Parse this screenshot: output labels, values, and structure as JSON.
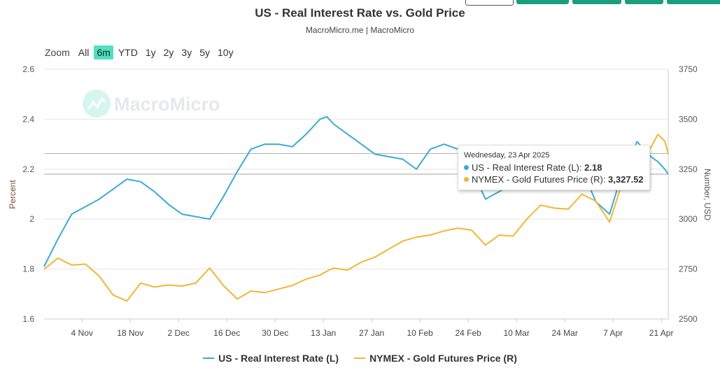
{
  "chart_data": {
    "type": "line",
    "title": "US - Real Interest Rate vs. Gold Price",
    "subtitle": "MacroMicro.me | MacroMicro",
    "watermark": "MacroMicro",
    "range_selector": {
      "label": "Zoom",
      "options": [
        "All",
        "6m",
        "YTD",
        "1y",
        "2y",
        "3y",
        "5y",
        "10y"
      ],
      "selected": "6m"
    },
    "ylabel_left": "Percent",
    "ylabel_right": "Number, USD",
    "ylim_left": [
      1.6,
      2.6
    ],
    "ylim_right": [
      2500,
      3750
    ],
    "yticks_left": [
      "1.6",
      "1.8",
      "2",
      "2.2",
      "2.4",
      "2.6"
    ],
    "yticks_right": [
      "2500",
      "2750",
      "3000",
      "3250",
      "3500",
      "3750"
    ],
    "xticks": [
      {
        "date": "2024-11-04",
        "label": "4 Nov"
      },
      {
        "date": "2024-11-18",
        "label": "18 Nov"
      },
      {
        "date": "2024-12-02",
        "label": "2 Dec"
      },
      {
        "date": "2024-12-16",
        "label": "16 Dec"
      },
      {
        "date": "2024-12-30",
        "label": "30 Dec"
      },
      {
        "date": "2025-01-13",
        "label": "13 Jan"
      },
      {
        "date": "2025-01-27",
        "label": "27 Jan"
      },
      {
        "date": "2025-02-10",
        "label": "10 Feb"
      },
      {
        "date": "2025-02-24",
        "label": "24 Feb"
      },
      {
        "date": "2025-03-10",
        "label": "10 Mar"
      },
      {
        "date": "2025-03-24",
        "label": "24 Mar"
      },
      {
        "date": "2025-04-07",
        "label": "7 Apr"
      },
      {
        "date": "2025-04-21",
        "label": "21 Apr"
      }
    ],
    "xlim": [
      "2024-10-24",
      "2025-04-23"
    ],
    "grid": true,
    "legend_position": "bottom",
    "x": [
      "2024-10-24",
      "2024-10-28",
      "2024-11-01",
      "2024-11-05",
      "2024-11-09",
      "2024-11-13",
      "2024-11-17",
      "2024-11-21",
      "2024-11-25",
      "2024-11-29",
      "2024-12-03",
      "2024-12-07",
      "2024-12-11",
      "2024-12-15",
      "2024-12-19",
      "2024-12-23",
      "2024-12-27",
      "2024-12-31",
      "2025-01-04",
      "2025-01-08",
      "2025-01-12",
      "2025-01-14",
      "2025-01-16",
      "2025-01-20",
      "2025-01-24",
      "2025-01-28",
      "2025-02-01",
      "2025-02-05",
      "2025-02-09",
      "2025-02-13",
      "2025-02-17",
      "2025-02-21",
      "2025-02-25",
      "2025-03-01",
      "2025-03-05",
      "2025-03-09",
      "2025-03-13",
      "2025-03-17",
      "2025-03-21",
      "2025-03-25",
      "2025-03-29",
      "2025-04-02",
      "2025-04-06",
      "2025-04-10",
      "2025-04-14",
      "2025-04-18",
      "2025-04-20",
      "2025-04-22",
      "2025-04-23"
    ],
    "series": [
      {
        "name": "US - Real Interest Rate (L)",
        "axis": "left",
        "color": "#3aabd6",
        "values": [
          1.81,
          1.92,
          2.02,
          2.05,
          2.08,
          2.12,
          2.16,
          2.15,
          2.11,
          2.06,
          2.02,
          2.01,
          2.0,
          2.09,
          2.19,
          2.28,
          2.3,
          2.3,
          2.29,
          2.34,
          2.4,
          2.41,
          2.38,
          2.34,
          2.3,
          2.26,
          2.25,
          2.24,
          2.2,
          2.28,
          2.3,
          2.28,
          2.2,
          2.08,
          2.11,
          2.14,
          2.16,
          2.18,
          2.2,
          2.22,
          2.2,
          2.07,
          2.02,
          2.2,
          2.31,
          2.25,
          2.23,
          2.2,
          2.18
        ]
      },
      {
        "name": "NYMEX - Gold Futures Price (R)",
        "axis": "right",
        "color": "#f2b632",
        "values": [
          2749,
          2805,
          2770,
          2775,
          2715,
          2620,
          2590,
          2680,
          2660,
          2670,
          2665,
          2680,
          2755,
          2668,
          2600,
          2640,
          2632,
          2650,
          2668,
          2700,
          2720,
          2740,
          2755,
          2745,
          2785,
          2810,
          2850,
          2890,
          2910,
          2920,
          2941,
          2955,
          2945,
          2870,
          2920,
          2915,
          3000,
          3070,
          3055,
          3050,
          3125,
          3090,
          2985,
          3200,
          3300,
          3360,
          3424,
          3390,
          3327.52
        ]
      }
    ],
    "tooltip": {
      "date": "Wednesday, 23 Apr 2025",
      "rows": [
        {
          "label": "US - Real Interest Rate (L): ",
          "value": "2.18",
          "color": "#3aabd6"
        },
        {
          "label": "NYMEX - Gold Futures Price (R): ",
          "value": "3,327.52",
          "color": "#f2b632"
        }
      ]
    }
  }
}
